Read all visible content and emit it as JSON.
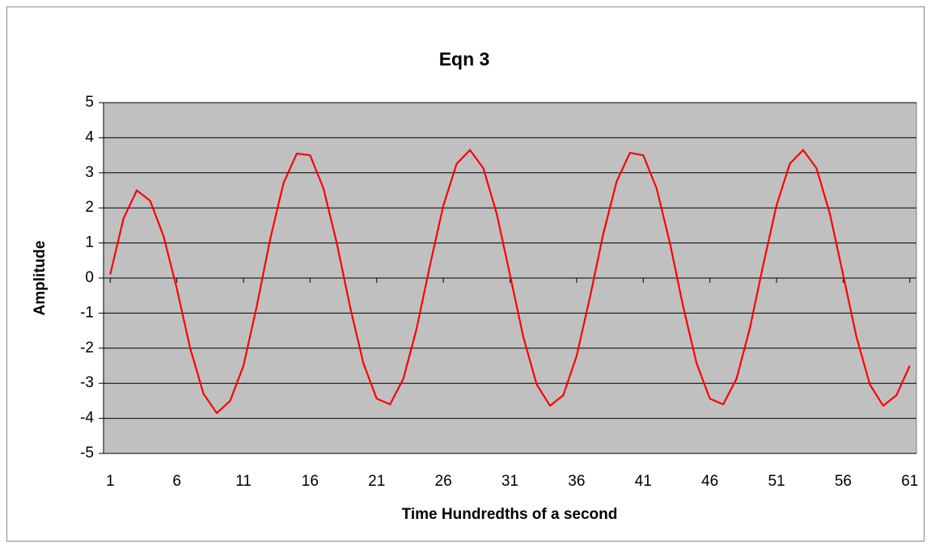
{
  "chart_data": {
    "type": "line",
    "title": "Eqn 3",
    "xlabel": "Time Hundredths of a second",
    "ylabel": "Amplitude",
    "x": [
      1,
      2,
      3,
      4,
      5,
      6,
      7,
      8,
      9,
      10,
      11,
      12,
      13,
      14,
      15,
      16,
      17,
      18,
      19,
      20,
      21,
      22,
      23,
      24,
      25,
      26,
      27,
      28,
      29,
      30,
      31,
      32,
      33,
      34,
      35,
      36,
      37,
      38,
      39,
      40,
      41,
      42,
      43,
      44,
      45,
      46,
      47,
      48,
      49,
      50,
      51,
      52,
      53,
      54,
      55,
      56,
      57,
      58,
      59,
      60,
      61
    ],
    "series": [
      {
        "name": "Eqn 3",
        "color": "#ff0000",
        "values": [
          0.1,
          1.7,
          2.5,
          2.2,
          1.2,
          -0.3,
          -2.0,
          -3.3,
          -3.85,
          -3.5,
          -2.5,
          -0.8,
          1.1,
          2.7,
          3.55,
          3.5,
          2.56,
          1.0,
          -0.82,
          -2.43,
          -3.44,
          -3.6,
          -2.87,
          -1.43,
          0.37,
          2.07,
          3.26,
          3.65,
          3.13,
          1.84,
          0.09,
          -1.68,
          -3.03,
          -3.64,
          -3.34,
          -2.22,
          -0.55,
          1.26,
          2.75,
          3.57,
          3.5,
          2.56,
          1.0,
          -0.82,
          -2.43,
          -3.44,
          -3.6,
          -2.87,
          -1.43,
          0.37,
          2.07,
          3.26,
          3.65,
          3.13,
          1.84,
          0.09,
          -1.68,
          -3.03,
          -3.64,
          -3.34,
          -2.5
        ]
      }
    ],
    "xlim": [
      0.5,
      61.5
    ],
    "xticks": [
      1,
      6,
      11,
      16,
      21,
      26,
      31,
      36,
      41,
      46,
      51,
      56,
      61
    ],
    "ylim": [
      -5,
      5
    ],
    "yticks": [
      -5,
      -4,
      -3,
      -2,
      -1,
      0,
      1,
      2,
      3,
      4,
      5
    ],
    "grid": true,
    "plot_background": "#c0c0c0"
  }
}
